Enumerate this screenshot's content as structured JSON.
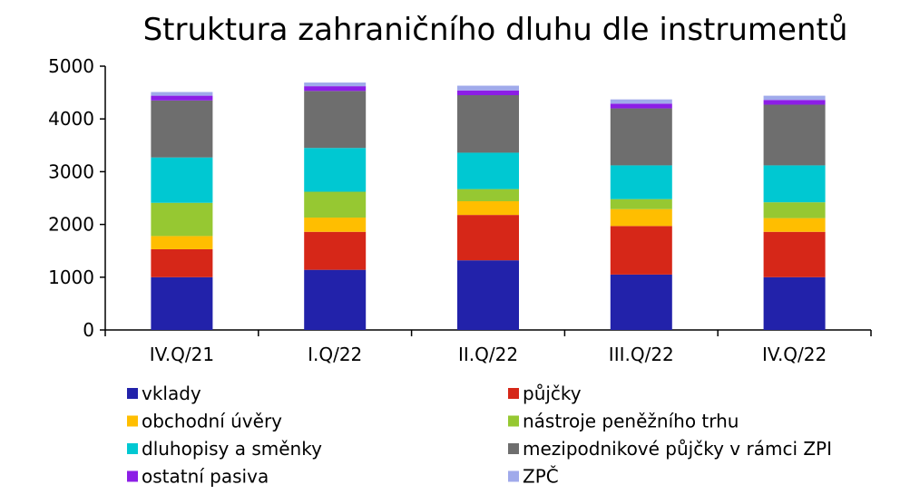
{
  "chart_data": {
    "type": "bar",
    "stacked": true,
    "title": "Struktura zahraničního dluhu dle instrumentů",
    "xlabel": "",
    "ylabel": "",
    "ylim": [
      0,
      5000
    ],
    "yticks": [
      0,
      1000,
      2000,
      3000,
      4000,
      5000
    ],
    "grid": false,
    "legend_position": "bottom",
    "categories": [
      "IV.Q/21",
      "I.Q/22",
      "II.Q/22",
      "III.Q/22",
      "IV.Q/22"
    ],
    "series": [
      {
        "name": "vklady",
        "color": "#2222aa",
        "values": [
          1000,
          1140,
          1320,
          1050,
          1000
        ]
      },
      {
        "name": "půjčky",
        "color": "#d62718",
        "values": [
          530,
          720,
          860,
          920,
          860
        ]
      },
      {
        "name": "obchodní úvěry",
        "color": "#ffbe00",
        "values": [
          250,
          270,
          260,
          320,
          260
        ]
      },
      {
        "name": "nástroje peněžního trhu",
        "color": "#96c832",
        "values": [
          630,
          490,
          230,
          190,
          300
        ]
      },
      {
        "name": "dluhopisy a směnky",
        "color": "#00c8d2",
        "values": [
          860,
          830,
          690,
          640,
          700
        ]
      },
      {
        "name": "mezipodnikové půjčky v rámci ZPI",
        "color": "#6e6e6e",
        "values": [
          1080,
          1080,
          1090,
          1080,
          1150
        ]
      },
      {
        "name": "ostatní pasiva",
        "color": "#8c1ee6",
        "values": [
          90,
          90,
          90,
          90,
          90
        ]
      },
      {
        "name": "ZPČ",
        "color": "#a0aaeb",
        "values": [
          70,
          70,
          90,
          80,
          80
        ]
      }
    ]
  }
}
